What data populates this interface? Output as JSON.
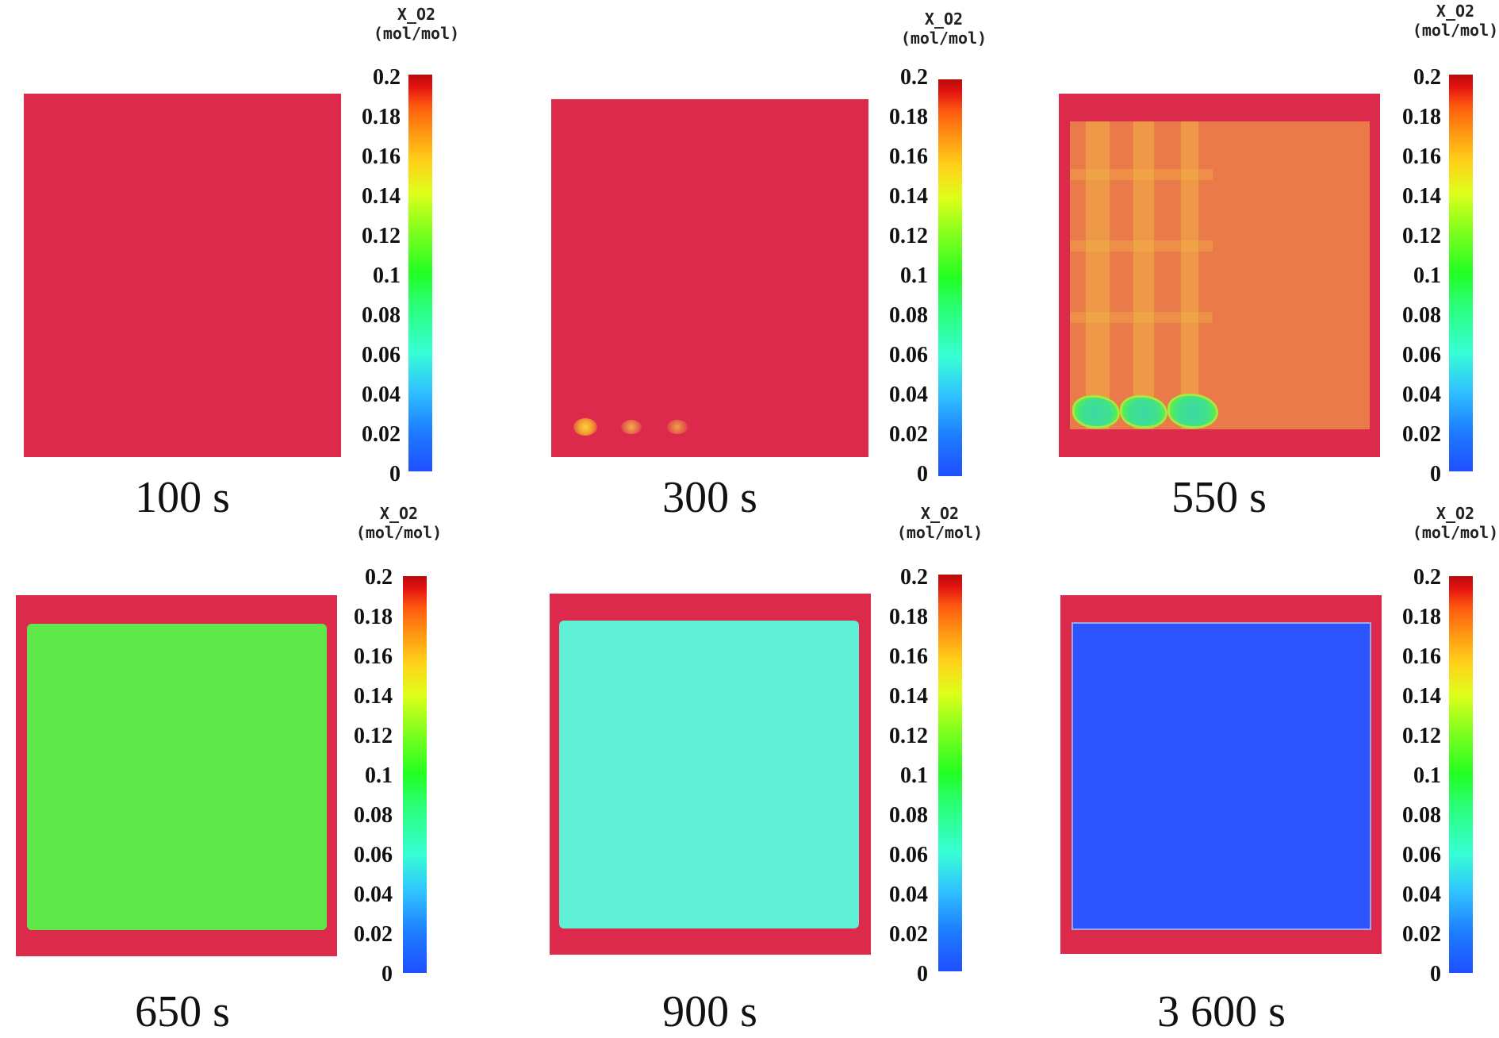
{
  "colorbar": {
    "title_line1": "X_O2",
    "title_line2": "(mol/mol)",
    "ticks": [
      "0.2",
      "0.18",
      "0.16",
      "0.14",
      "0.12",
      "0.1",
      "0.08",
      "0.06",
      "0.04",
      "0.02",
      "0"
    ],
    "range": [
      0,
      0.2
    ],
    "colormap": "rainbow (blue to red)"
  },
  "panels": [
    {
      "time": "100 s",
      "interior_color": "#dc2a4c",
      "border_color": "#dc2a4c"
    },
    {
      "time": "300 s",
      "interior_color": "#dc2a4c",
      "border_color": "#dc2a4c"
    },
    {
      "time": "550 s",
      "interior_color": "#eb7a4a",
      "border_color": "#dc2a4c"
    },
    {
      "time": "650 s",
      "interior_color": "#5fe84a",
      "border_color": "#dc2a4c"
    },
    {
      "time": "900 s",
      "interior_color": "#5ff0d6",
      "border_color": "#dc2a4c"
    },
    {
      "time": "3 600 s",
      "interior_color": "#2d54ff",
      "border_color": "#dc2a4c"
    }
  ]
}
